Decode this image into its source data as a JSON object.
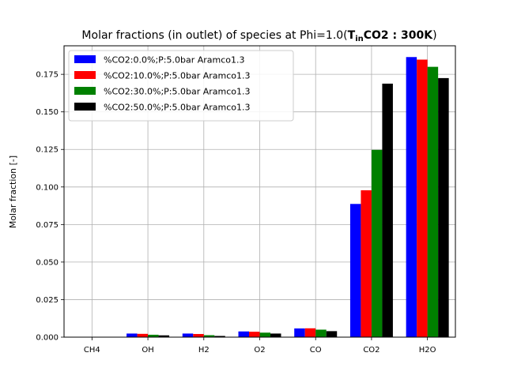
{
  "chart_data": {
    "type": "bar",
    "title_prefix": "Molar fractions (in outlet) of species at Phi=1.0(",
    "title_math_T": "T",
    "title_math_sub": "in",
    "title_math_rest": "CO2 : 300K",
    "title_suffix": ")",
    "xlabel": "",
    "ylabel": "Molar fraction [-]",
    "categories": [
      "CH4",
      "OH",
      "H2",
      "O2",
      "CO",
      "CO2",
      "H2O"
    ],
    "ylim": [
      0,
      0.194
    ],
    "yticks": [
      "0.000",
      "0.025",
      "0.050",
      "0.075",
      "0.100",
      "0.125",
      "0.150",
      "0.175"
    ],
    "grid": true,
    "legend_position": "upper-left",
    "series": [
      {
        "name": "%CO2:0.0%;P:5.0bar Aramco1.3",
        "color": "#0000ff",
        "values": [
          0.0,
          0.0024,
          0.0024,
          0.0038,
          0.0058,
          0.0887,
          0.1865
        ]
      },
      {
        "name": "%CO2:10.0%;P:5.0bar Aramco1.3",
        "color": "#ff0000",
        "values": [
          0.0,
          0.0022,
          0.0021,
          0.0036,
          0.0059,
          0.0978,
          0.1848
        ]
      },
      {
        "name": "%CO2:30.0%;P:5.0bar Aramco1.3",
        "color": "#008000",
        "values": [
          0.0,
          0.0016,
          0.0013,
          0.003,
          0.005,
          0.1247,
          0.18
        ]
      },
      {
        "name": "%CO2:50.0%;P:5.0bar Aramco1.3",
        "color": "#000000",
        "values": [
          0.0,
          0.0012,
          0.0008,
          0.0024,
          0.004,
          0.1688,
          0.1725
        ]
      }
    ]
  }
}
